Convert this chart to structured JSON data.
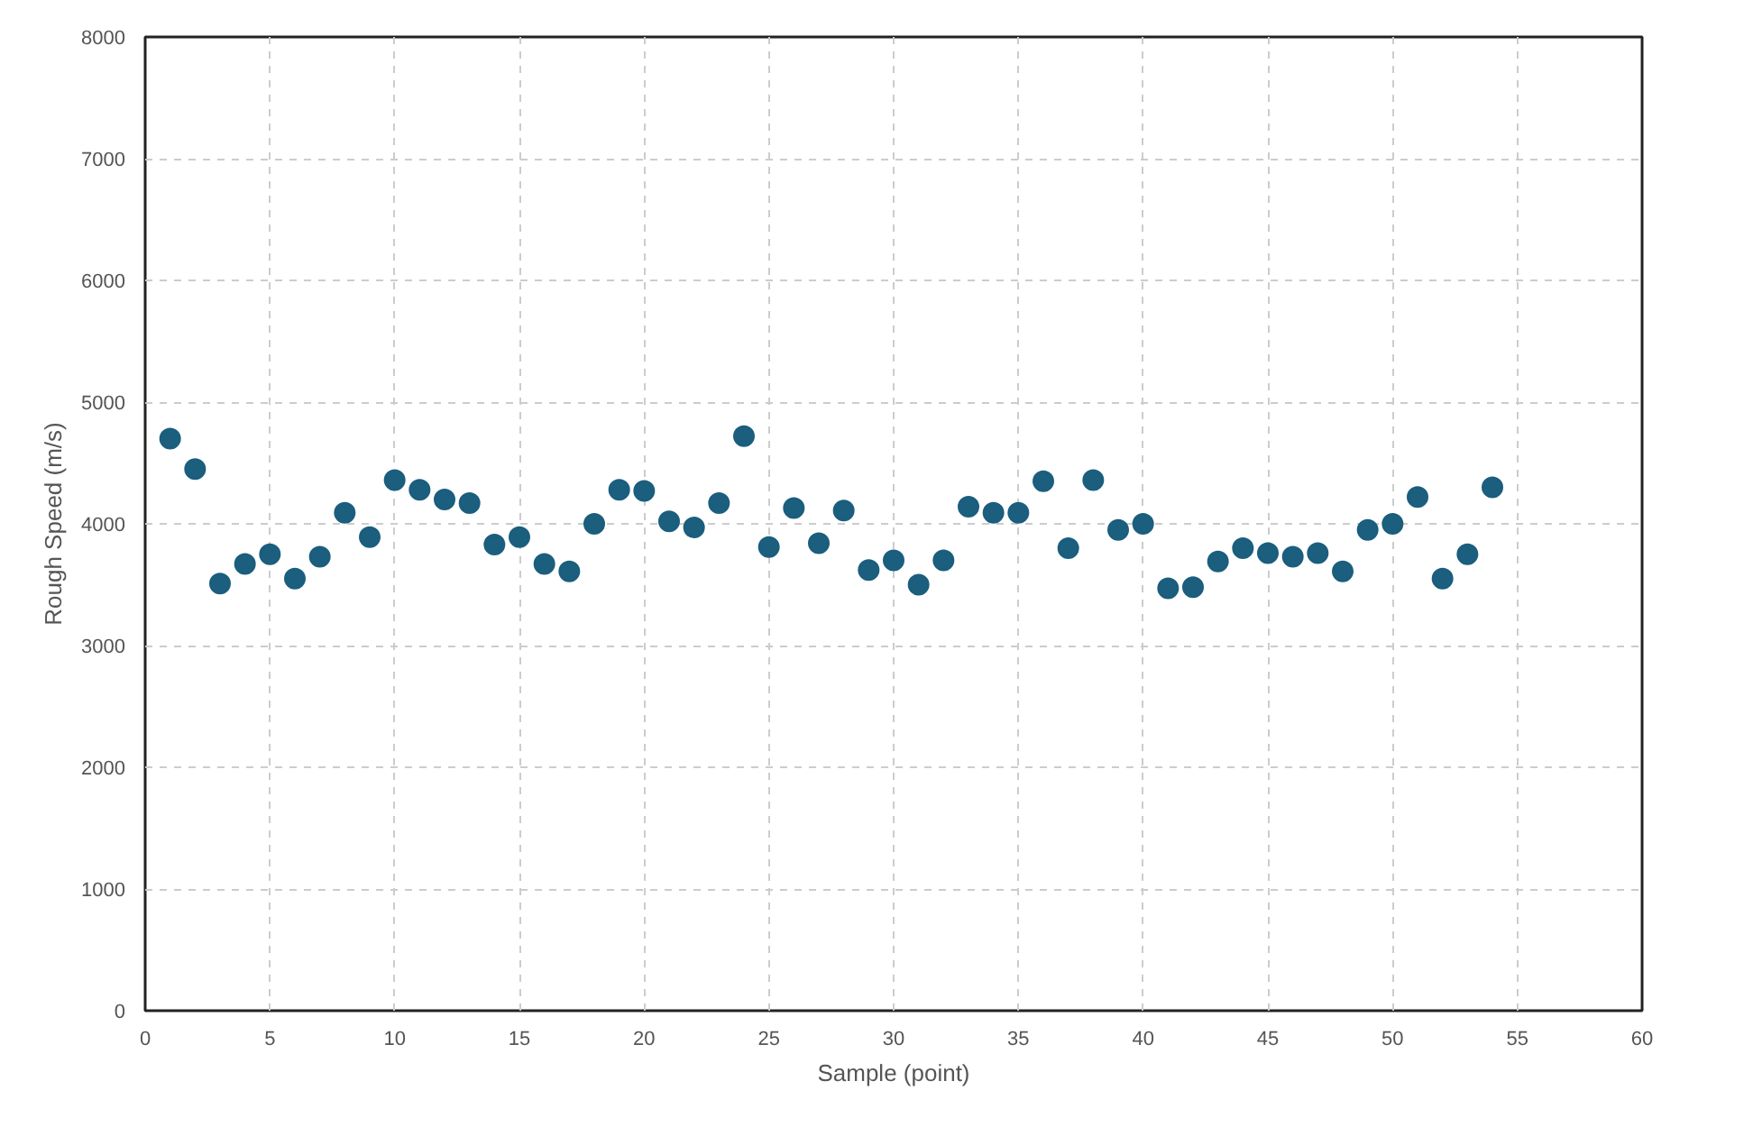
{
  "chart_data": {
    "type": "scatter",
    "xlabel": "Sample (point)",
    "ylabel": "Rough Speed (m/s)",
    "x": [
      1,
      2,
      3,
      4,
      5,
      6,
      7,
      8,
      9,
      10,
      11,
      12,
      13,
      14,
      15,
      16,
      17,
      18,
      19,
      20,
      21,
      22,
      23,
      24,
      25,
      26,
      27,
      28,
      29,
      30,
      31,
      32,
      33,
      34,
      35,
      36,
      37,
      38,
      39,
      40,
      41,
      42,
      43,
      44,
      45,
      46,
      47,
      48,
      49,
      50,
      51,
      52,
      53,
      54
    ],
    "series": [
      {
        "color": "#1b5e7e",
        "values": [
          4700,
          4450,
          3510,
          3670,
          3750,
          3550,
          3730,
          4090,
          3890,
          4360,
          4280,
          4200,
          4170,
          3830,
          3890,
          3670,
          3610,
          4000,
          4280,
          4270,
          4020,
          3970,
          4170,
          4720,
          3810,
          4130,
          3840,
          4110,
          3620,
          3700,
          3500,
          3700,
          4140,
          4090,
          4090,
          4350,
          3800,
          4360,
          3950,
          4000,
          3470,
          3480,
          3690,
          3800,
          3760,
          3730,
          3760,
          3610,
          3950,
          4000,
          4220,
          3550,
          3750,
          4300
        ]
      }
    ],
    "xlim": [
      0,
      60
    ],
    "xticks": [
      0,
      5,
      10,
      15,
      20,
      25,
      30,
      35,
      40,
      45,
      50,
      55,
      60
    ],
    "ylim": [
      0,
      8000
    ],
    "yticks": [
      0,
      1000,
      2000,
      3000,
      4000,
      5000,
      6000,
      7000,
      8000
    ],
    "grid": true,
    "marker": "circle"
  }
}
